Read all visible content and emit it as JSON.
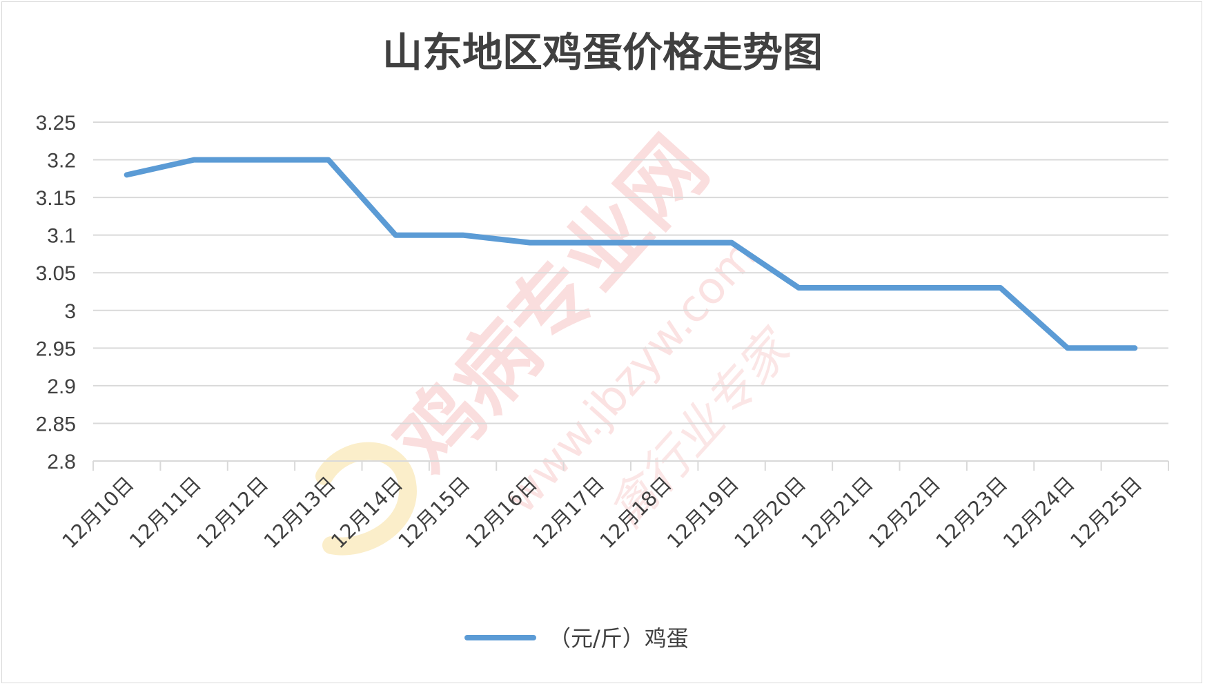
{
  "colors": {
    "series": "#5b9bd5",
    "grid": "#d9d9d9",
    "text": "#404040",
    "watermark": "#f4b6b6"
  },
  "watermark": {
    "text": "鸡病专业网",
    "url": "www.jbzyw.com",
    "script": "禽行业专家"
  },
  "chart_data": {
    "type": "line",
    "title": "山东地区鸡蛋价格走势图",
    "categories": [
      "12月10日",
      "12月11日",
      "12月12日",
      "12月13日",
      "12月14日",
      "12月15日",
      "12月16日",
      "12月17日",
      "12月18日",
      "12月19日",
      "12月20日",
      "12月21日",
      "12月22日",
      "12月23日",
      "12月24日",
      "12月25日"
    ],
    "series": [
      {
        "name": "（元/斤）鸡蛋",
        "values": [
          3.18,
          3.2,
          3.2,
          3.2,
          3.1,
          3.1,
          3.09,
          3.09,
          3.09,
          3.09,
          3.03,
          3.03,
          3.03,
          3.03,
          2.95,
          2.95
        ]
      }
    ],
    "ylim": [
      2.8,
      3.25
    ],
    "yticks": [
      "2.8",
      "2.85",
      "2.9",
      "2.95",
      "3",
      "3.05",
      "3.1",
      "3.15",
      "3.2",
      "3.25"
    ],
    "grid": true,
    "legend_position": "bottom"
  }
}
